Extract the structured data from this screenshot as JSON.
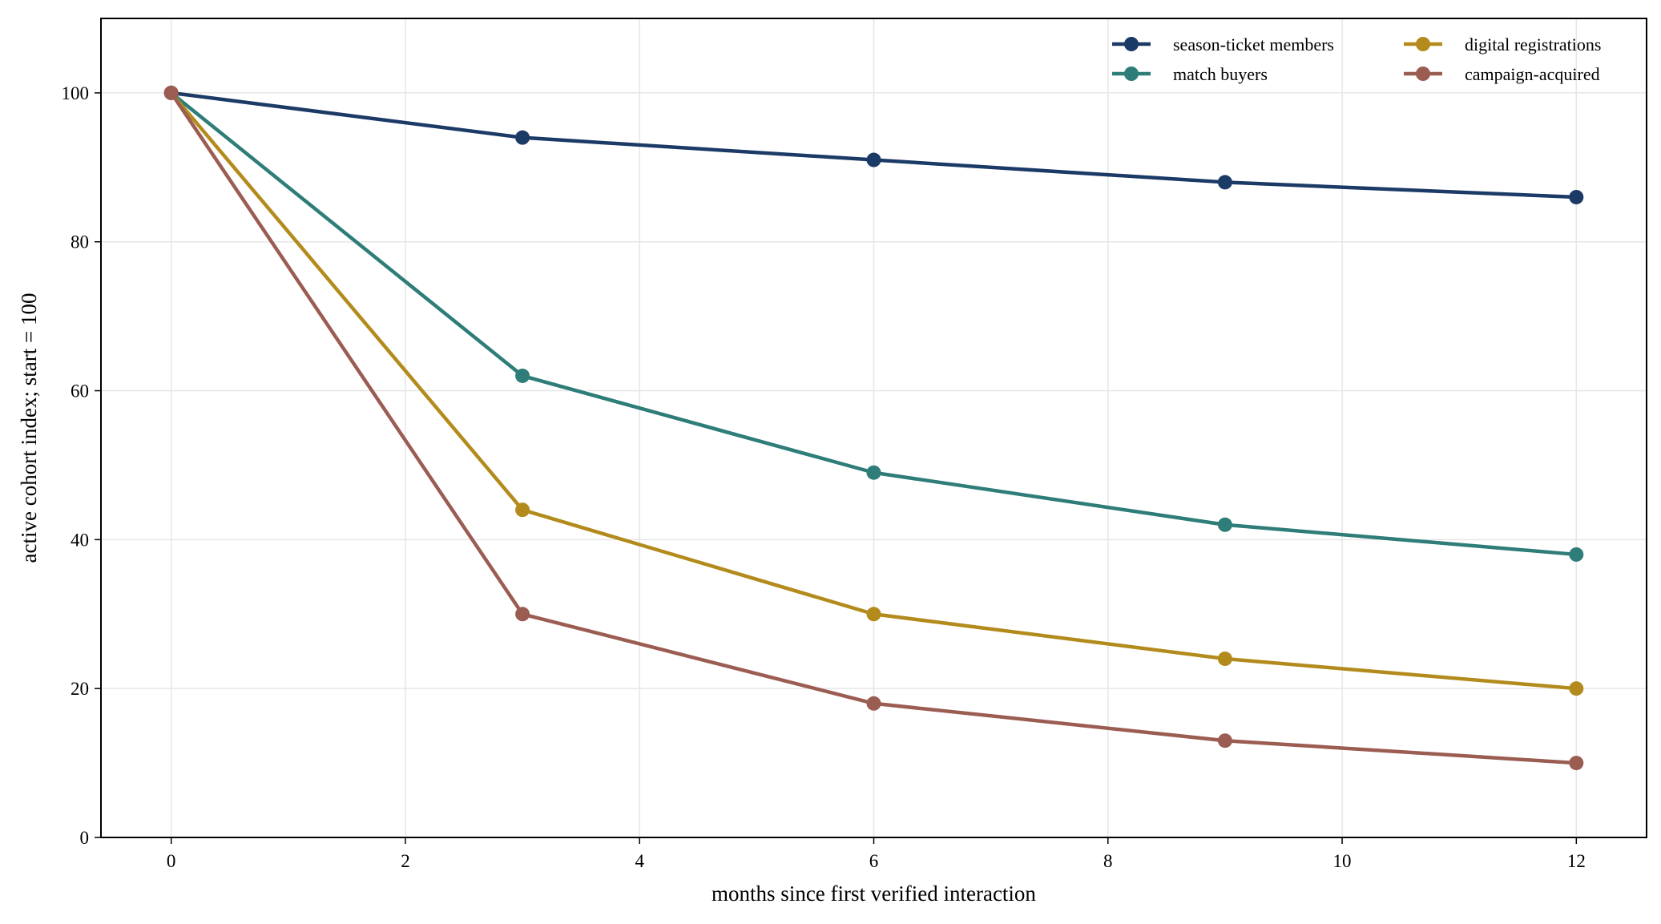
{
  "chart_data": {
    "type": "line",
    "title": "",
    "xlabel": "months since first verified interaction",
    "ylabel": "active cohort index; start = 100",
    "x": [
      0,
      3,
      6,
      9,
      12
    ],
    "xlim": [
      -0.6,
      12.6
    ],
    "ylim": [
      0,
      110
    ],
    "xticks": [
      0,
      2,
      4,
      6,
      8,
      10,
      12
    ],
    "yticks": [
      0,
      20,
      40,
      60,
      80,
      100
    ],
    "grid": true,
    "legend_position": "top-right",
    "legend_columns": 2,
    "series": [
      {
        "name": "season-ticket members",
        "color": "#1b3a66",
        "values": [
          100,
          94,
          91,
          88,
          86
        ]
      },
      {
        "name": "match buyers",
        "color": "#2e7d78",
        "values": [
          100,
          62,
          49,
          42,
          38
        ]
      },
      {
        "name": "digital registrations",
        "color": "#b38b1c",
        "values": [
          100,
          44,
          30,
          24,
          20
        ]
      },
      {
        "name": "campaign-acquired",
        "color": "#9b5c52",
        "values": [
          100,
          30,
          18,
          13,
          10
        ]
      }
    ]
  }
}
